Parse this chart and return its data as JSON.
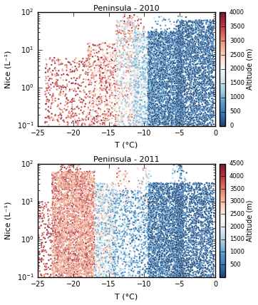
{
  "title_2010": "Peninsula - 2010",
  "title_2011": "Peninsula - 2011",
  "xlabel": "T (°C)",
  "ylabel": "Nice (L⁻¹)",
  "xlim": [
    -25,
    0
  ],
  "ylim_log": [
    -1,
    2
  ],
  "cmap": "RdBu_r",
  "cbar_label": "Altitude (m)",
  "cbar_ticks_2010": [
    0,
    500,
    1000,
    1500,
    2000,
    2500,
    3000,
    3500,
    4000
  ],
  "cbar_ticks_2011": [
    500,
    1000,
    1500,
    2000,
    2500,
    3000,
    3500,
    4000,
    4500
  ],
  "cbar_vmin_2010": 0,
  "cbar_vmax_2010": 4000,
  "cbar_vmin_2011": 0,
  "cbar_vmax_2011": 4500,
  "marker_size": 3,
  "figsize": [
    3.62,
    4.28
  ],
  "dpi": 100,
  "style": "classic"
}
